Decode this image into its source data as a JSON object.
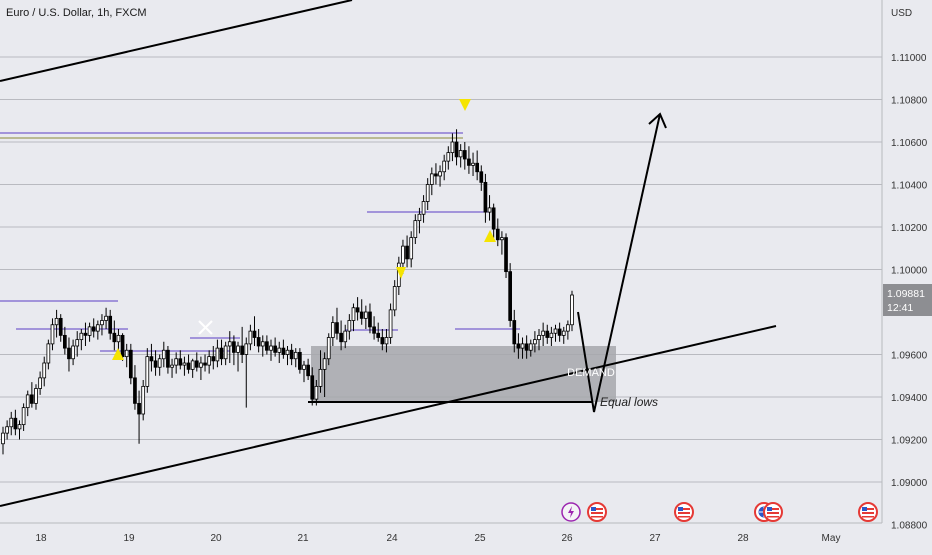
{
  "header": {
    "title": "Euro / U.S. Dollar, 1h, FXCM"
  },
  "price_axis": {
    "currency": "USD",
    "ticks": [
      "1.11000",
      "1.10800",
      "1.10600",
      "1.10400",
      "1.10200",
      "1.10000",
      "1.09600",
      "1.09400",
      "1.09200",
      "1.09000",
      "1.08800"
    ],
    "current_price": "1.09881",
    "countdown": "12:41"
  },
  "time_axis": {
    "labels": [
      "18",
      "19",
      "20",
      "21",
      "24",
      "25",
      "26",
      "27",
      "28",
      "May"
    ]
  },
  "annotations": {
    "demand_label": "DEMAND",
    "equal_lows_label": "Equal lows"
  },
  "colors": {
    "bull": "#ffffff",
    "bear": "#000000",
    "zone": "#a6a7ab",
    "line": "#000000",
    "level": "#5b3fc4",
    "marker": "#f5e400",
    "price_tag": "#8d8e92"
  },
  "icons": [
    "lightning-icon",
    "us-flag-icon",
    "us-flag-icon",
    "us-flag-icon",
    "globe-icon",
    "us-flag-icon"
  ],
  "chart_data": {
    "type": "candlestick",
    "title": "Euro / U.S. Dollar, 1h, FXCM",
    "symbol": "EURUSD",
    "interval": "1h",
    "x_labels": [
      "18",
      "19",
      "20",
      "21",
      "24",
      "25",
      "26",
      "27",
      "28",
      "May"
    ],
    "y_range": [
      1.088,
      1.1125
    ],
    "y_ticks": [
      1.11,
      1.108,
      1.106,
      1.104,
      1.102,
      1.1,
      1.096,
      1.094,
      1.092,
      1.09,
      1.088
    ],
    "last_price": 1.09881,
    "demand_zone": {
      "label": "DEMAND",
      "low": 1.0937,
      "high": 1.0963
    },
    "equal_lows": 1.0937,
    "ohlc": [
      [
        1.0918,
        1.0926,
        1.0913,
        1.0923
      ],
      [
        1.0923,
        1.0929,
        1.092,
        1.0926
      ],
      [
        1.0926,
        1.0933,
        1.0922,
        1.093
      ],
      [
        1.093,
        1.0934,
        1.0922,
        1.0925
      ],
      [
        1.0925,
        1.0929,
        1.092,
        1.0927
      ],
      [
        1.0927,
        1.0937,
        1.0924,
        1.0935
      ],
      [
        1.0935,
        1.0943,
        1.0931,
        1.0941
      ],
      [
        1.0941,
        1.0947,
        1.0935,
        1.0937
      ],
      [
        1.0937,
        1.0946,
        1.0934,
        1.0944
      ],
      [
        1.0944,
        1.0952,
        1.0941,
        1.0949
      ],
      [
        1.0949,
        1.0959,
        1.0945,
        1.0956
      ],
      [
        1.0956,
        1.0967,
        1.0953,
        1.0965
      ],
      [
        1.0965,
        1.0977,
        1.0962,
        1.0974
      ],
      [
        1.0974,
        1.0981,
        1.0968,
        1.0977
      ],
      [
        1.0977,
        1.0979,
        1.0966,
        1.0969
      ],
      [
        1.0969,
        1.0973,
        1.096,
        1.0963
      ],
      [
        1.0963,
        1.0968,
        1.0952,
        1.0958
      ],
      [
        1.0958,
        1.0967,
        1.0955,
        1.0964
      ],
      [
        1.0964,
        1.0971,
        1.0959,
        1.0967
      ],
      [
        1.0967,
        1.0972,
        1.0962,
        1.097
      ],
      [
        1.097,
        1.0975,
        1.0964,
        1.0969
      ],
      [
        1.0969,
        1.0975,
        1.0966,
        1.0973
      ],
      [
        1.0973,
        1.0977,
        1.0968,
        1.0971
      ],
      [
        1.0971,
        1.0976,
        1.0967,
        1.0974
      ],
      [
        1.0974,
        1.0979,
        1.0969,
        1.0976
      ],
      [
        1.0976,
        1.0982,
        1.0972,
        1.0978
      ],
      [
        1.0978,
        1.0981,
        1.0967,
        1.097
      ],
      [
        1.097,
        1.0976,
        1.0962,
        1.0966
      ],
      [
        1.0966,
        1.0972,
        1.0961,
        1.0969
      ],
      [
        1.0969,
        1.097,
        1.0957,
        1.0959
      ],
      [
        1.0959,
        1.0965,
        1.0954,
        1.0962
      ],
      [
        1.0962,
        1.0965,
        1.0946,
        1.0949
      ],
      [
        1.0949,
        1.0955,
        1.0934,
        1.0937
      ],
      [
        1.0937,
        1.0943,
        1.0918,
        1.0932
      ],
      [
        1.0932,
        1.0948,
        1.0929,
        1.0945
      ],
      [
        1.0945,
        1.0963,
        1.0942,
        1.0959
      ],
      [
        1.0959,
        1.0965,
        1.0952,
        1.0957
      ],
      [
        1.0957,
        1.0962,
        1.095,
        1.0954
      ],
      [
        1.0954,
        1.096,
        1.095,
        1.0958
      ],
      [
        1.0958,
        1.0966,
        1.0954,
        1.0962
      ],
      [
        1.0962,
        1.0964,
        1.0951,
        1.0954
      ],
      [
        1.0954,
        1.0958,
        1.0949,
        1.0955
      ],
      [
        1.0955,
        1.0961,
        1.0951,
        1.0958
      ],
      [
        1.0958,
        1.0962,
        1.0953,
        1.0955
      ],
      [
        1.0955,
        1.0959,
        1.095,
        1.0956
      ],
      [
        1.0956,
        1.096,
        1.0951,
        1.0953
      ],
      [
        1.0953,
        1.0958,
        1.0949,
        1.0957
      ],
      [
        1.0957,
        1.0961,
        1.0952,
        1.0954
      ],
      [
        1.0954,
        1.0959,
        1.0948,
        1.0956
      ],
      [
        1.0956,
        1.096,
        1.0952,
        1.0955
      ],
      [
        1.0955,
        1.0962,
        1.0951,
        1.0959
      ],
      [
        1.0959,
        1.0964,
        1.0953,
        1.0957
      ],
      [
        1.0957,
        1.0967,
        1.0954,
        1.0963
      ],
      [
        1.0963,
        1.0967,
        1.0955,
        1.0958
      ],
      [
        1.0958,
        1.0966,
        1.0955,
        1.0964
      ],
      [
        1.0964,
        1.0971,
        1.0956,
        1.0966
      ],
      [
        1.0966,
        1.0969,
        1.0955,
        1.0961
      ],
      [
        1.0961,
        1.0966,
        1.0952,
        1.0964
      ],
      [
        1.0964,
        1.0973,
        1.0956,
        1.096
      ],
      [
        1.096,
        1.0968,
        1.0935,
        1.0965
      ],
      [
        1.0965,
        1.0974,
        1.0962,
        1.0971
      ],
      [
        1.0971,
        1.0978,
        1.0964,
        1.0968
      ],
      [
        1.0968,
        1.0972,
        1.0961,
        1.0964
      ],
      [
        1.0964,
        1.0969,
        1.0959,
        1.0966
      ],
      [
        1.0966,
        1.0969,
        1.096,
        1.0962
      ],
      [
        1.0962,
        1.0967,
        1.0957,
        1.0964
      ],
      [
        1.0964,
        1.0968,
        1.0959,
        1.0961
      ],
      [
        1.0961,
        1.0966,
        1.0956,
        1.0963
      ],
      [
        1.0963,
        1.0967,
        1.0958,
        1.096
      ],
      [
        1.096,
        1.0964,
        1.0955,
        1.0962
      ],
      [
        1.0962,
        1.0965,
        1.0955,
        1.0958
      ],
      [
        1.0958,
        1.0963,
        1.0954,
        1.0961
      ],
      [
        1.0961,
        1.0963,
        1.0951,
        1.0953
      ],
      [
        1.0953,
        1.0957,
        1.0947,
        1.0955
      ],
      [
        1.0955,
        1.0958,
        1.0948,
        1.095
      ],
      [
        1.095,
        1.0954,
        1.0936,
        1.0939
      ],
      [
        1.0939,
        1.0948,
        1.0936,
        1.0945
      ],
      [
        1.0945,
        1.0962,
        1.0942,
        1.0953
      ],
      [
        1.0953,
        1.0961,
        1.094,
        1.0958
      ],
      [
        1.0958,
        1.097,
        1.0955,
        1.0968
      ],
      [
        1.0968,
        1.0978,
        1.0964,
        1.0975
      ],
      [
        1.0975,
        1.0982,
        1.0967,
        1.097
      ],
      [
        1.097,
        1.0976,
        1.0962,
        1.0966
      ],
      [
        1.0966,
        1.0974,
        1.0963,
        1.0971
      ],
      [
        1.0971,
        1.0979,
        1.0967,
        1.0976
      ],
      [
        1.0976,
        1.0984,
        1.0971,
        1.0982
      ],
      [
        1.0982,
        1.0987,
        1.0976,
        1.098
      ],
      [
        1.098,
        1.0986,
        1.0974,
        1.0977
      ],
      [
        1.0977,
        1.0983,
        1.0972,
        1.098
      ],
      [
        1.098,
        1.0984,
        1.097,
        1.0973
      ],
      [
        1.0973,
        1.0978,
        1.0967,
        1.097
      ],
      [
        1.097,
        1.0975,
        1.0966,
        1.0968
      ],
      [
        1.0968,
        1.0972,
        1.0962,
        1.0965
      ],
      [
        1.0965,
        1.0972,
        1.0961,
        1.0968
      ],
      [
        1.0968,
        1.0984,
        1.0965,
        1.0981
      ],
      [
        1.0981,
        1.0995,
        1.0978,
        1.0992
      ],
      [
        1.0992,
        1.1006,
        1.0988,
        1.1003
      ],
      [
        1.1003,
        1.1014,
        1.0998,
        1.1011
      ],
      [
        1.1011,
        1.1016,
        1.1001,
        1.1005
      ],
      [
        1.1005,
        1.1018,
        1.1001,
        1.1015
      ],
      [
        1.1015,
        1.1026,
        1.1012,
        1.1023
      ],
      [
        1.1023,
        1.1029,
        1.1017,
        1.1026
      ],
      [
        1.1026,
        1.1035,
        1.1022,
        1.1032
      ],
      [
        1.1032,
        1.1043,
        1.1028,
        1.104
      ],
      [
        1.104,
        1.1048,
        1.1035,
        1.1045
      ],
      [
        1.1045,
        1.105,
        1.104,
        1.1044
      ],
      [
        1.1044,
        1.1049,
        1.1039,
        1.1046
      ],
      [
        1.1046,
        1.1054,
        1.1042,
        1.1051
      ],
      [
        1.1051,
        1.1058,
        1.1047,
        1.1055
      ],
      [
        1.1055,
        1.1064,
        1.1051,
        1.106
      ],
      [
        1.106,
        1.1066,
        1.1049,
        1.1053
      ],
      [
        1.1053,
        1.1059,
        1.1048,
        1.1056
      ],
      [
        1.1056,
        1.106,
        1.1047,
        1.1052
      ],
      [
        1.1052,
        1.1058,
        1.1045,
        1.1049
      ],
      [
        1.1049,
        1.1055,
        1.1044,
        1.105
      ],
      [
        1.105,
        1.1056,
        1.1042,
        1.1046
      ],
      [
        1.1046,
        1.1049,
        1.1037,
        1.1041
      ],
      [
        1.1041,
        1.1045,
        1.1022,
        1.1027
      ],
      [
        1.1027,
        1.1035,
        1.1023,
        1.1029
      ],
      [
        1.1029,
        1.1031,
        1.1015,
        1.1019
      ],
      [
        1.1019,
        1.1024,
        1.1011,
        1.1014
      ],
      [
        1.1014,
        1.1018,
        1.1007,
        1.1015
      ],
      [
        1.1015,
        1.1017,
        1.0996,
        1.0999
      ],
      [
        1.0999,
        1.1003,
        1.0973,
        1.0976
      ],
      [
        1.0976,
        1.0981,
        1.0961,
        1.0965
      ],
      [
        1.0965,
        1.097,
        1.0958,
        1.0963
      ],
      [
        1.0963,
        1.0968,
        1.0958,
        1.0965
      ],
      [
        1.0965,
        1.0969,
        1.0958,
        1.0962
      ],
      [
        1.0962,
        1.0967,
        1.0959,
        1.0965
      ],
      [
        1.0965,
        1.0971,
        1.0961,
        1.0967
      ],
      [
        1.0967,
        1.0972,
        1.0962,
        1.0969
      ],
      [
        1.0969,
        1.0975,
        1.0964,
        1.0971
      ],
      [
        1.0971,
        1.0974,
        1.0965,
        1.0968
      ],
      [
        1.0968,
        1.0973,
        1.0964,
        1.097
      ],
      [
        1.097,
        1.0974,
        1.0966,
        1.0972
      ],
      [
        1.0972,
        1.0975,
        1.0966,
        1.0969
      ],
      [
        1.0969,
        1.0973,
        1.0965,
        1.0971
      ],
      [
        1.0971,
        1.0976,
        1.0967,
        1.0974
      ],
      [
        1.0974,
        1.099,
        1.0971,
        1.0988
      ]
    ]
  }
}
